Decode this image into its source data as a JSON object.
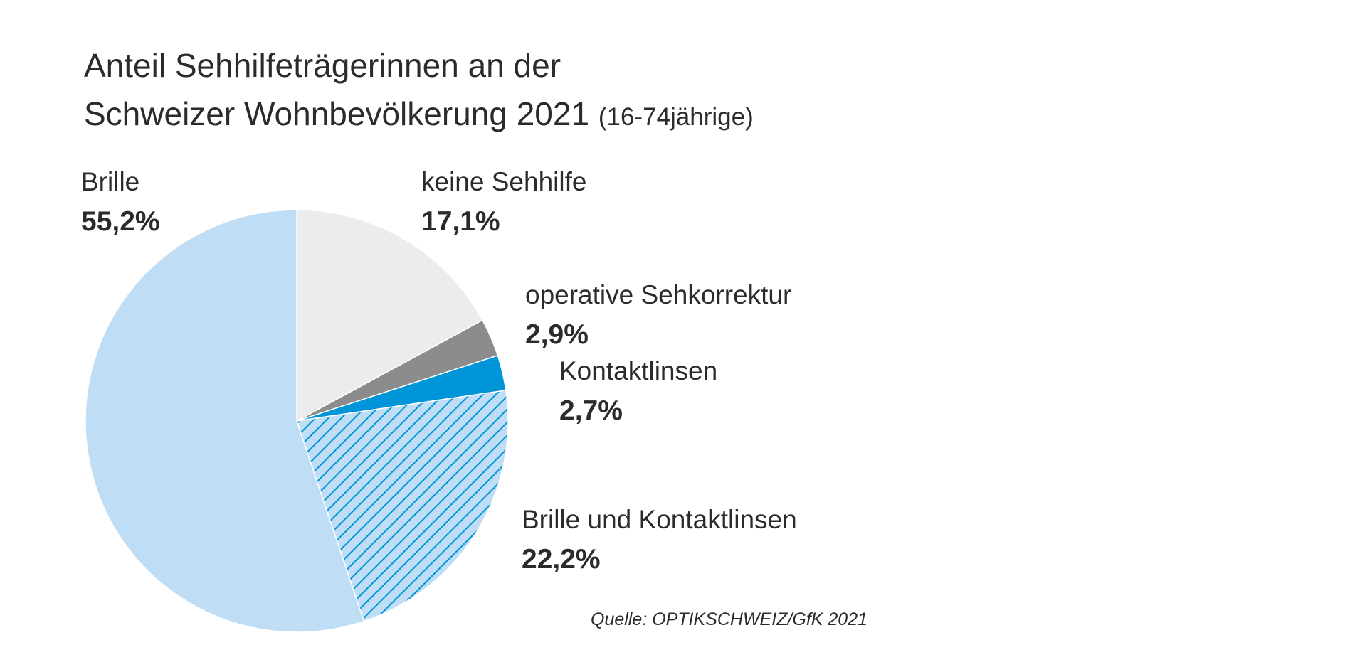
{
  "chart_data": {
    "type": "pie",
    "title_line1": "Anteil Sehhilfeträgerinnen an der",
    "title_line2": "Schweizer Wohnbevölkerung 2021",
    "subtitle": "(16-74jährige)",
    "source": "Quelle: OPTIKSCHWEIZ/GfK 2021",
    "slices": [
      {
        "name": "keine Sehhilfe",
        "value": 17.1,
        "label": "17,1%",
        "color": "#ebeced",
        "pattern": "none"
      },
      {
        "name": "operative Sehkorrektur",
        "value": 2.9,
        "label": "2,9%",
        "color": "#8c8c8c",
        "pattern": "none"
      },
      {
        "name": "Kontaktlinsen",
        "value": 2.7,
        "label": "2,7%",
        "color": "#0095d9",
        "pattern": "none"
      },
      {
        "name": "Brille und Kontaktlinsen",
        "value": 22.2,
        "label": "22,2%",
        "color": "#bfddf4",
        "pattern": "hatched",
        "pattern_color": "#0095d9"
      },
      {
        "name": "Brille",
        "value": 55.2,
        "label": "55,2%",
        "color": "#bfddf4",
        "pattern": "none"
      }
    ],
    "start_angle": "12 o'clock",
    "direction": "clockwise",
    "legend": "none"
  }
}
